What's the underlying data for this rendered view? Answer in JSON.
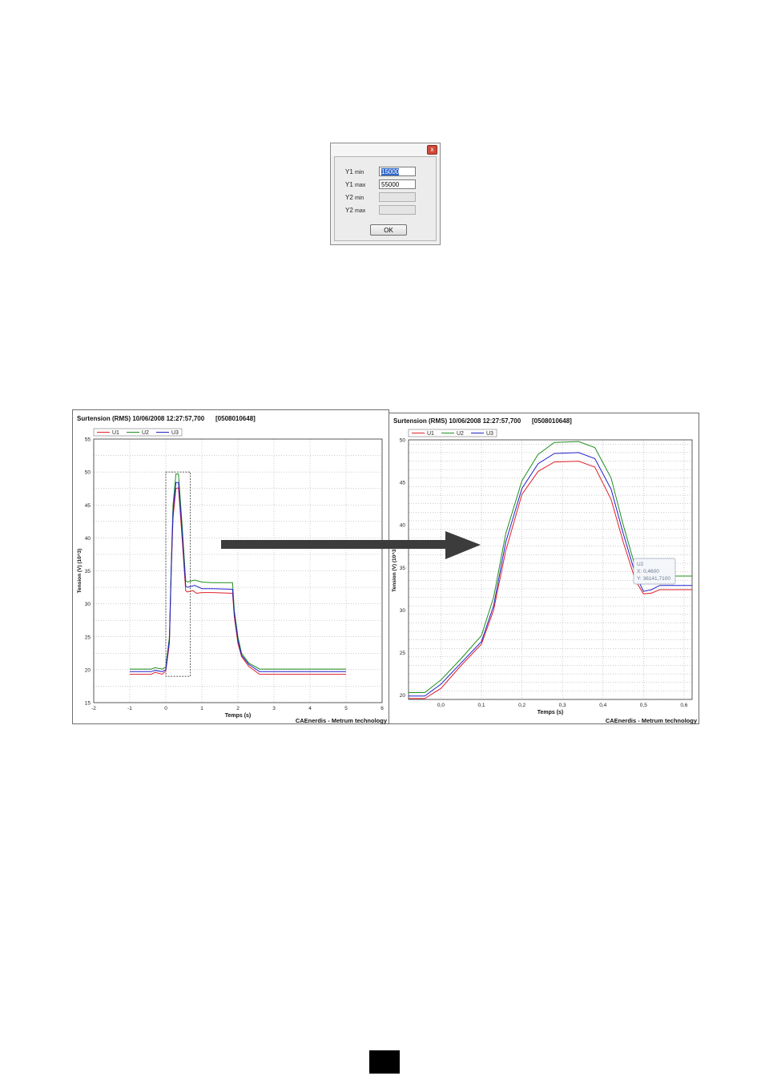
{
  "dialog": {
    "close_glyph": "x",
    "fields": [
      {
        "name": "Y1",
        "suffix": "min",
        "value": "15000",
        "enabled": true,
        "selected": true
      },
      {
        "name": "Y1",
        "suffix": "max",
        "value": "55000",
        "enabled": true,
        "selected": false
      },
      {
        "name": "Y2",
        "suffix": "min",
        "value": "",
        "enabled": false,
        "selected": false
      },
      {
        "name": "Y2",
        "suffix": "max",
        "value": "",
        "enabled": false,
        "selected": false
      }
    ],
    "ok_label": "OK"
  },
  "charts_common": {
    "title": "Surtension (RMS) 10/06/2008 12:27:57,700",
    "serial": "[0508010648]",
    "footer": "CAEnerdis - Metrum technology",
    "legend": [
      "U1",
      "U2",
      "U3"
    ]
  },
  "colors": {
    "U1": "#e0202a",
    "U2": "#1f8f1f",
    "U3": "#2020cc",
    "arrow": "#3c3c3c"
  },
  "chart_data": [
    {
      "type": "line",
      "title": "Surtension (RMS) 10/06/2008 12:27:57,700",
      "xlabel": "Temps (s)",
      "ylabel": "Tension (V) (10^3)",
      "xlim": [
        -2,
        6
      ],
      "ylim": [
        15,
        55
      ],
      "xticks": [
        "-2",
        "-1",
        "0",
        "1",
        "2",
        "3",
        "4",
        "5",
        "6"
      ],
      "yticks": [
        "15",
        "20",
        "25",
        "30",
        "35",
        "40",
        "45",
        "50",
        "55"
      ],
      "grid": true,
      "legend": "top-left",
      "zoom_box": {
        "x": [
          0,
          0.68
        ],
        "y": [
          19,
          50
        ]
      },
      "series": [
        {
          "name": "U1",
          "points": [
            [
              -1,
              19.3
            ],
            [
              -0.4,
              19.3
            ],
            [
              -0.3,
              19.6
            ],
            [
              -0.1,
              19.3
            ],
            [
              0,
              19.8
            ],
            [
              0.1,
              24
            ],
            [
              0.15,
              35
            ],
            [
              0.2,
              43
            ],
            [
              0.28,
              47.5
            ],
            [
              0.35,
              47.6
            ],
            [
              0.45,
              40
            ],
            [
              0.55,
              32
            ],
            [
              0.6,
              31.8
            ],
            [
              0.75,
              32
            ],
            [
              0.85,
              31.6
            ],
            [
              1,
              31.7
            ],
            [
              1.3,
              31.7
            ],
            [
              1.85,
              31.6
            ],
            [
              1.9,
              28
            ],
            [
              2.0,
              24
            ],
            [
              2.1,
              22
            ],
            [
              2.3,
              20.5
            ],
            [
              2.6,
              19.3
            ],
            [
              3,
              19.3
            ],
            [
              5,
              19.3
            ]
          ]
        },
        {
          "name": "U2",
          "points": [
            [
              -1,
              20.1
            ],
            [
              -0.4,
              20.1
            ],
            [
              -0.3,
              20.3
            ],
            [
              -0.1,
              20.1
            ],
            [
              0,
              20.4
            ],
            [
              0.1,
              25
            ],
            [
              0.15,
              36
            ],
            [
              0.2,
              45
            ],
            [
              0.28,
              49.7
            ],
            [
              0.35,
              49.7
            ],
            [
              0.45,
              42
            ],
            [
              0.55,
              33.5
            ],
            [
              0.6,
              33.3
            ],
            [
              0.8,
              33.6
            ],
            [
              1.0,
              33.3
            ],
            [
              1.3,
              33.2
            ],
            [
              1.85,
              33.2
            ],
            [
              1.9,
              29
            ],
            [
              2.0,
              25
            ],
            [
              2.1,
              22.5
            ],
            [
              2.3,
              21
            ],
            [
              2.6,
              20.1
            ],
            [
              3,
              20.1
            ],
            [
              5,
              20.1
            ]
          ]
        },
        {
          "name": "U3",
          "points": [
            [
              -1,
              19.7
            ],
            [
              -0.4,
              19.7
            ],
            [
              -0.3,
              19.9
            ],
            [
              -0.1,
              19.7
            ],
            [
              0,
              20.0
            ],
            [
              0.1,
              24.5
            ],
            [
              0.15,
              35.5
            ],
            [
              0.2,
              44
            ],
            [
              0.28,
              48.4
            ],
            [
              0.35,
              48.4
            ],
            [
              0.45,
              41
            ],
            [
              0.55,
              32.7
            ],
            [
              0.6,
              32.5
            ],
            [
              0.8,
              32.8
            ],
            [
              1.0,
              32.3
            ],
            [
              1.3,
              32.3
            ],
            [
              1.85,
              32.2
            ],
            [
              1.9,
              28.5
            ],
            [
              2.0,
              24.5
            ],
            [
              2.1,
              22.2
            ],
            [
              2.3,
              20.8
            ],
            [
              2.6,
              19.7
            ],
            [
              3,
              19.7
            ],
            [
              5,
              19.7
            ]
          ]
        }
      ]
    },
    {
      "type": "line",
      "title": "Surtension (RMS) 10/06/2008 12:27:57,700",
      "xlabel": "Temps (s)",
      "ylabel": "Tension (V) (10^3)",
      "xlim": [
        -0.08,
        0.62
      ],
      "ylim": [
        19.5,
        50
      ],
      "xticks": [
        "0,0",
        "0,1",
        "0,2",
        "0,3",
        "0,4",
        "0,5",
        "0,6"
      ],
      "yticks": [
        "20",
        "25",
        "30",
        "35",
        "40",
        "45",
        "50"
      ],
      "grid": true,
      "legend": "top-left",
      "tooltip": {
        "series": "U2",
        "x_label": "X: 0,4600",
        "y_label": "Y: 36141,7100"
      },
      "series": [
        {
          "name": "U1",
          "points": [
            [
              -0.08,
              19.6
            ],
            [
              -0.04,
              19.6
            ],
            [
              0,
              20.8
            ],
            [
              0.05,
              23.5
            ],
            [
              0.1,
              26
            ],
            [
              0.13,
              30
            ],
            [
              0.16,
              37
            ],
            [
              0.2,
              43.6
            ],
            [
              0.24,
              46.3
            ],
            [
              0.28,
              47.4
            ],
            [
              0.34,
              47.5
            ],
            [
              0.38,
              46.8
            ],
            [
              0.42,
              43
            ],
            [
              0.45,
              38
            ],
            [
              0.48,
              33.5
            ],
            [
              0.5,
              31.9
            ],
            [
              0.52,
              32
            ],
            [
              0.54,
              32.4
            ],
            [
              0.62,
              32.4
            ]
          ]
        },
        {
          "name": "U2",
          "points": [
            [
              -0.08,
              20.3
            ],
            [
              -0.04,
              20.3
            ],
            [
              0,
              21.8
            ],
            [
              0.05,
              24.3
            ],
            [
              0.1,
              27
            ],
            [
              0.13,
              31.5
            ],
            [
              0.16,
              39
            ],
            [
              0.2,
              45.2
            ],
            [
              0.24,
              48.3
            ],
            [
              0.28,
              49.7
            ],
            [
              0.34,
              49.8
            ],
            [
              0.38,
              49.1
            ],
            [
              0.42,
              45.5
            ],
            [
              0.45,
              40
            ],
            [
              0.48,
              35
            ],
            [
              0.5,
              33.4
            ],
            [
              0.52,
              33.6
            ],
            [
              0.54,
              34
            ],
            [
              0.62,
              34
            ]
          ]
        },
        {
          "name": "U3",
          "points": [
            [
              -0.08,
              19.9
            ],
            [
              -0.04,
              19.9
            ],
            [
              0,
              21.3
            ],
            [
              0.05,
              23.8
            ],
            [
              0.1,
              26.3
            ],
            [
              0.13,
              30.5
            ],
            [
              0.16,
              38
            ],
            [
              0.2,
              44.3
            ],
            [
              0.24,
              47.2
            ],
            [
              0.28,
              48.4
            ],
            [
              0.34,
              48.5
            ],
            [
              0.38,
              47.8
            ],
            [
              0.42,
              44.2
            ],
            [
              0.45,
              39
            ],
            [
              0.48,
              34.2
            ],
            [
              0.5,
              32.2
            ],
            [
              0.52,
              32.4
            ],
            [
              0.54,
              32.9
            ],
            [
              0.62,
              32.9
            ]
          ]
        }
      ]
    }
  ],
  "page": {
    "number": ""
  }
}
